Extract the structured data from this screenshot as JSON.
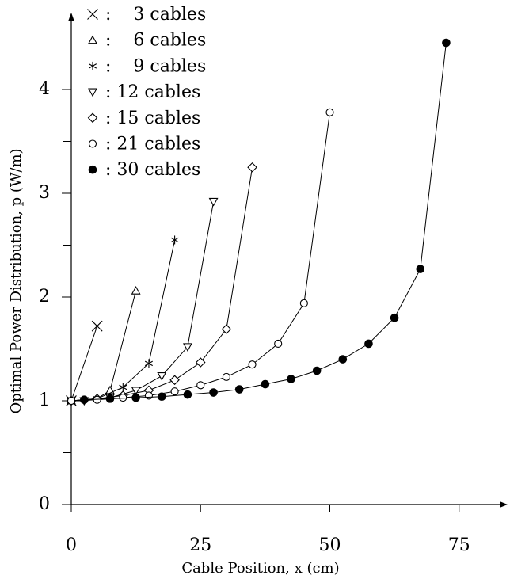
{
  "chart_data": {
    "type": "line",
    "xlabel": "Cable Position, x (cm)",
    "ylabel": "Optimal Power Distribution, p (W/m)",
    "xlim": [
      0,
      80
    ],
    "ylim": [
      0,
      4.6
    ],
    "x_ticks": [
      0,
      25,
      50,
      75
    ],
    "x_tick_labels": [
      "0",
      "25",
      "50",
      "75"
    ],
    "y_ticks": [
      0,
      1,
      2,
      3,
      4
    ],
    "y_tick_labels": [
      "0",
      "1",
      "2",
      "3",
      "4"
    ],
    "y_minor_ticks": [
      0.5,
      1.5,
      2.5,
      3.5
    ],
    "grid": false,
    "legend_position": "top-left",
    "series": [
      {
        "name": "3 cables",
        "legend_label": ":    3 cables",
        "marker": "x",
        "x": [
          0,
          5
        ],
        "y": [
          1.0,
          1.72
        ]
      },
      {
        "name": "6 cables",
        "legend_label": ":    6 cables",
        "marker": "triangle-up",
        "x": [
          0,
          5,
          7.5,
          12.5
        ],
        "y": [
          1.0,
          1.02,
          1.1,
          2.06
        ]
      },
      {
        "name": "9 cables",
        "legend_label": ":    9 cables",
        "marker": "asterisk",
        "x": [
          0,
          5,
          10,
          15,
          20
        ],
        "y": [
          1.0,
          1.02,
          1.13,
          1.36,
          2.55
        ]
      },
      {
        "name": "12 cables",
        "legend_label": ": 12 cables",
        "marker": "triangle-down",
        "x": [
          0,
          2.5,
          7.5,
          12.5,
          17.5,
          22.5,
          27.5
        ],
        "y": [
          1.0,
          1.0,
          1.03,
          1.1,
          1.24,
          1.52,
          2.92
        ]
      },
      {
        "name": "15 cables",
        "legend_label": ": 15 cables",
        "marker": "diamond",
        "x": [
          0,
          5,
          10,
          15,
          20,
          25,
          30,
          35
        ],
        "y": [
          1.0,
          1.02,
          1.05,
          1.1,
          1.2,
          1.37,
          1.69,
          3.25
        ]
      },
      {
        "name": "21 cables",
        "legend_label": ": 21 cables",
        "marker": "circle-open",
        "x": [
          0,
          5,
          10,
          15,
          20,
          25,
          30,
          35,
          40,
          45,
          50
        ],
        "y": [
          1.0,
          1.01,
          1.03,
          1.05,
          1.09,
          1.15,
          1.23,
          1.35,
          1.55,
          1.94,
          3.78
        ]
      },
      {
        "name": "30 cables",
        "legend_label": ": 30 cables",
        "marker": "circle-filled",
        "x": [
          2.5,
          7.5,
          12.5,
          17.5,
          22.5,
          27.5,
          32.5,
          37.5,
          42.5,
          47.5,
          52.5,
          57.5,
          62.5,
          67.5,
          72.5
        ],
        "y": [
          1.01,
          1.02,
          1.03,
          1.04,
          1.06,
          1.08,
          1.11,
          1.16,
          1.21,
          1.29,
          1.4,
          1.55,
          1.8,
          2.27,
          4.45
        ]
      }
    ]
  }
}
